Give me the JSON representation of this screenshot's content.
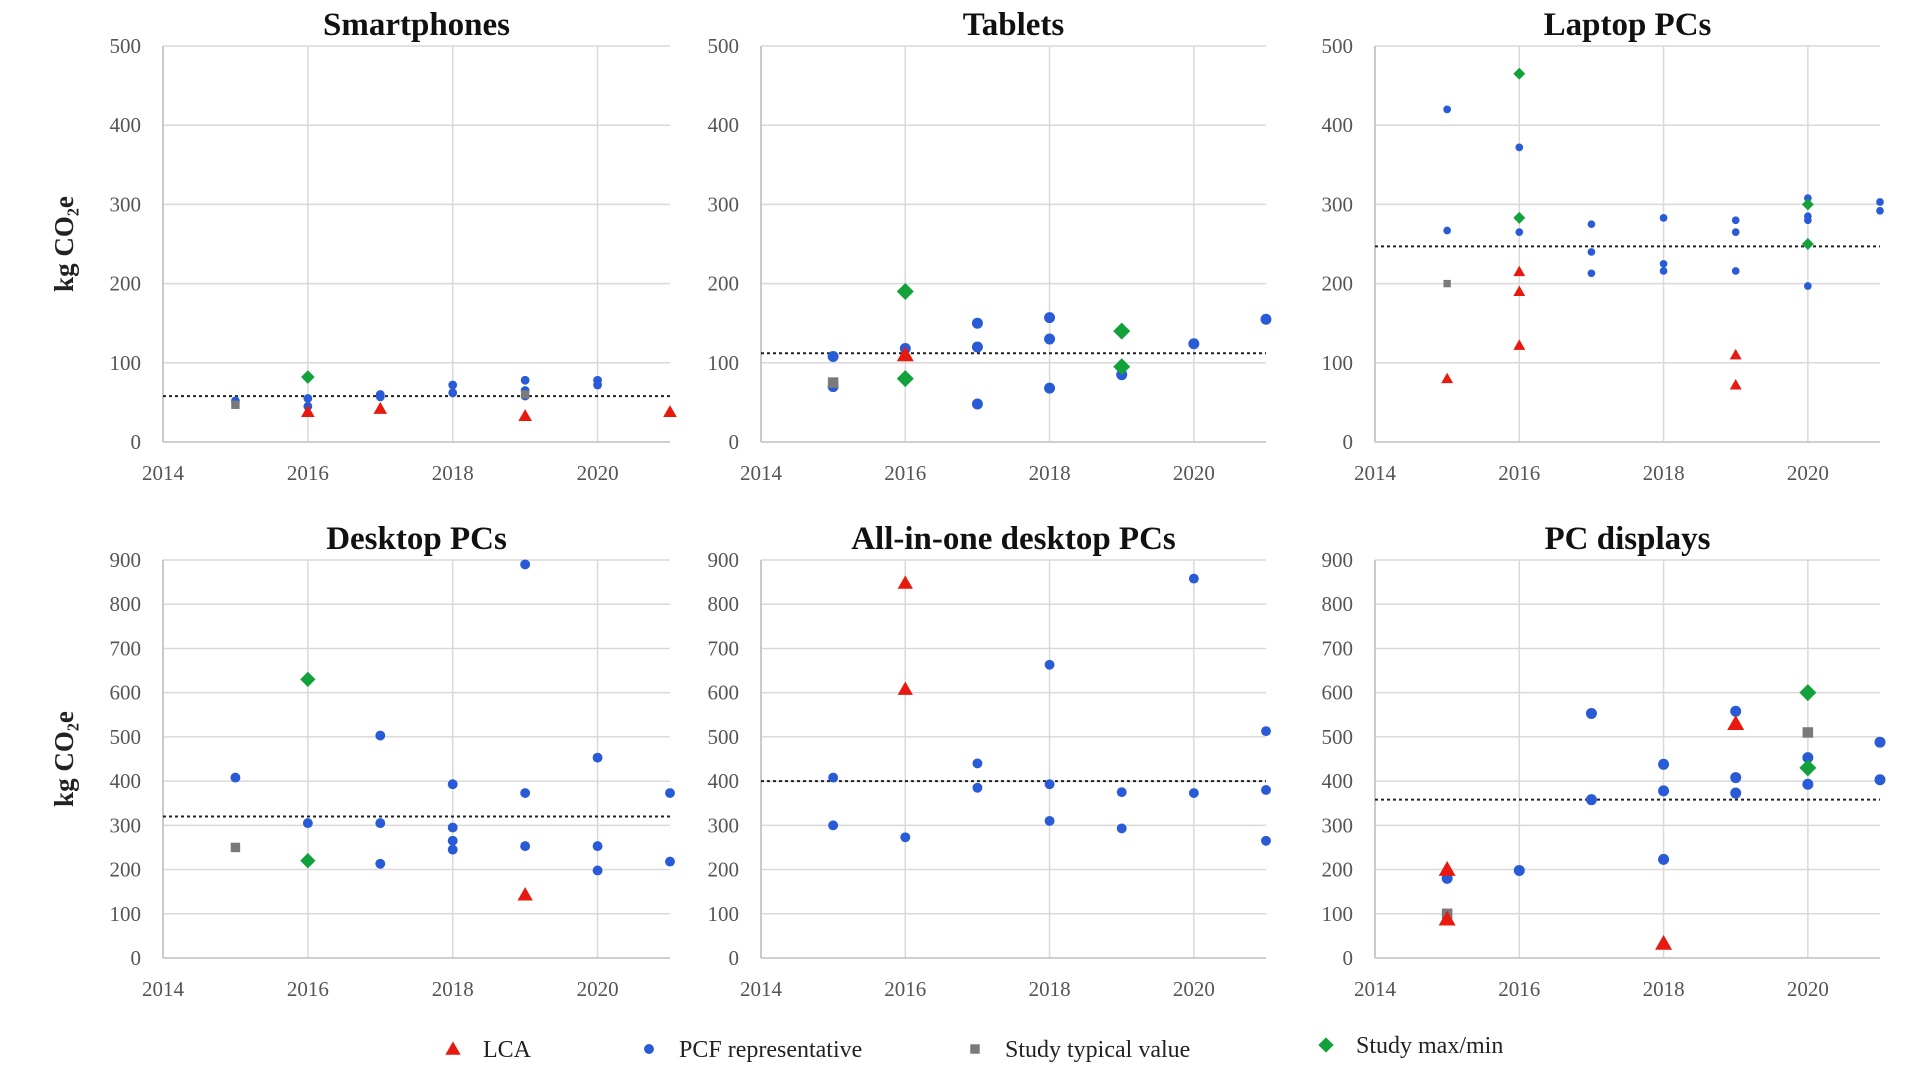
{
  "legend": [
    {
      "key": "lca",
      "label": "LCA",
      "marker": "triangle",
      "color": "#e8190f"
    },
    {
      "key": "pcf",
      "label": "PCF representative",
      "marker": "circle",
      "color": "#2a5bd7"
    },
    {
      "key": "typ",
      "label": "Study typical value",
      "marker": "square",
      "color": "#7a7a7a"
    },
    {
      "key": "mm",
      "label": "Study max/min",
      "marker": "diamond",
      "color": "#12a13a"
    }
  ],
  "chart_data": [
    {
      "type": "scatter",
      "title": "Smartphones",
      "ylabel": "kg CO₂e",
      "xlim": [
        2014,
        2021
      ],
      "xticks": [
        2014,
        2016,
        2018,
        2020
      ],
      "ylim": [
        0,
        500
      ],
      "yticks": [
        0,
        100,
        200,
        300,
        400,
        500
      ],
      "reference_line": 58,
      "series": {
        "lca": [
          [
            2016,
            38
          ],
          [
            2017,
            42
          ],
          [
            2019,
            33
          ],
          [
            2021,
            38
          ]
        ],
        "pcf": [
          [
            2015,
            52
          ],
          [
            2016,
            55
          ],
          [
            2016,
            45
          ],
          [
            2017,
            60
          ],
          [
            2017,
            57
          ],
          [
            2018,
            72
          ],
          [
            2018,
            62
          ],
          [
            2019,
            78
          ],
          [
            2019,
            65
          ],
          [
            2019,
            58
          ],
          [
            2020,
            78
          ],
          [
            2020,
            72
          ]
        ],
        "typ": [
          [
            2015,
            47
          ],
          [
            2019,
            60
          ]
        ],
        "mm": [
          [
            2016,
            82
          ]
        ]
      }
    },
    {
      "type": "scatter",
      "title": "Tablets",
      "ylabel": "",
      "xlim": [
        2014,
        2021
      ],
      "xticks": [
        2014,
        2016,
        2018,
        2020
      ],
      "ylim": [
        0,
        500
      ],
      "yticks": [
        0,
        100,
        200,
        300,
        400,
        500
      ],
      "reference_line": 112,
      "series": {
        "lca": [
          [
            2016,
            110
          ]
        ],
        "pcf": [
          [
            2015,
            108
          ],
          [
            2015,
            70
          ],
          [
            2016,
            118
          ],
          [
            2017,
            150
          ],
          [
            2017,
            120
          ],
          [
            2017,
            48
          ],
          [
            2018,
            157
          ],
          [
            2018,
            130
          ],
          [
            2018,
            68
          ],
          [
            2019,
            85
          ],
          [
            2020,
            124
          ],
          [
            2021,
            155
          ]
        ],
        "typ": [
          [
            2015,
            75
          ]
        ],
        "mm": [
          [
            2016,
            190
          ],
          [
            2016,
            80
          ],
          [
            2019,
            140
          ],
          [
            2019,
            95
          ]
        ]
      }
    },
    {
      "type": "scatter",
      "title": "Laptop PCs",
      "ylabel": "",
      "xlim": [
        2014,
        2021
      ],
      "xticks": [
        2014,
        2016,
        2018,
        2020
      ],
      "ylim": [
        0,
        500
      ],
      "yticks": [
        0,
        100,
        200,
        300,
        400,
        500
      ],
      "reference_line": 247,
      "series": {
        "lca": [
          [
            2015,
            80
          ],
          [
            2016,
            215
          ],
          [
            2016,
            190
          ],
          [
            2016,
            122
          ],
          [
            2019,
            110
          ],
          [
            2019,
            72
          ]
        ],
        "pcf": [
          [
            2015,
            420
          ],
          [
            2015,
            267
          ],
          [
            2016,
            372
          ],
          [
            2016,
            265
          ],
          [
            2017,
            275
          ],
          [
            2017,
            240
          ],
          [
            2017,
            213
          ],
          [
            2018,
            283
          ],
          [
            2018,
            225
          ],
          [
            2018,
            216
          ],
          [
            2019,
            280
          ],
          [
            2019,
            265
          ],
          [
            2019,
            216
          ],
          [
            2020,
            308
          ],
          [
            2020,
            285
          ],
          [
            2020,
            280
          ],
          [
            2020,
            197
          ],
          [
            2021,
            303
          ],
          [
            2021,
            292
          ]
        ],
        "typ": [
          [
            2015,
            200
          ]
        ],
        "mm": [
          [
            2016,
            465
          ],
          [
            2016,
            283
          ],
          [
            2020,
            300
          ],
          [
            2020,
            250
          ]
        ]
      }
    },
    {
      "type": "scatter",
      "title": "Desktop PCs",
      "ylabel": "kg CO₂e",
      "xlim": [
        2014,
        2021
      ],
      "xticks": [
        2014,
        2016,
        2018,
        2020
      ],
      "ylim": [
        0,
        900
      ],
      "yticks": [
        0,
        100,
        200,
        300,
        400,
        500,
        600,
        700,
        800,
        900
      ],
      "reference_line": 320,
      "series": {
        "lca": [
          [
            2019,
            143
          ]
        ],
        "pcf": [
          [
            2015,
            408
          ],
          [
            2016,
            305
          ],
          [
            2017,
            503
          ],
          [
            2017,
            305
          ],
          [
            2017,
            213
          ],
          [
            2018,
            393
          ],
          [
            2018,
            295
          ],
          [
            2018,
            265
          ],
          [
            2018,
            245
          ],
          [
            2019,
            890
          ],
          [
            2019,
            373
          ],
          [
            2019,
            253
          ],
          [
            2020,
            453
          ],
          [
            2020,
            253
          ],
          [
            2020,
            198
          ],
          [
            2021,
            373
          ],
          [
            2021,
            218
          ]
        ],
        "typ": [
          [
            2015,
            250
          ]
        ],
        "mm": [
          [
            2016,
            630
          ],
          [
            2016,
            220
          ]
        ]
      }
    },
    {
      "type": "scatter",
      "title": "All-in-one desktop PCs",
      "ylabel": "",
      "xlim": [
        2014,
        2021
      ],
      "xticks": [
        2014,
        2016,
        2018,
        2020
      ],
      "ylim": [
        0,
        900
      ],
      "yticks": [
        0,
        100,
        200,
        300,
        400,
        500,
        600,
        700,
        800,
        900
      ],
      "reference_line": 400,
      "series": {
        "lca": [
          [
            2016,
            848
          ],
          [
            2016,
            608
          ]
        ],
        "pcf": [
          [
            2015,
            408
          ],
          [
            2015,
            300
          ],
          [
            2016,
            273
          ],
          [
            2017,
            440
          ],
          [
            2017,
            385
          ],
          [
            2018,
            663
          ],
          [
            2018,
            393
          ],
          [
            2018,
            310
          ],
          [
            2019,
            375
          ],
          [
            2019,
            293
          ],
          [
            2020,
            858
          ],
          [
            2020,
            373
          ],
          [
            2021,
            513
          ],
          [
            2021,
            380
          ],
          [
            2021,
            265
          ]
        ],
        "typ": [],
        "mm": []
      }
    },
    {
      "type": "scatter",
      "title": "PC displays",
      "ylabel": "",
      "xlim": [
        2014,
        2021
      ],
      "xticks": [
        2014,
        2016,
        2018,
        2020
      ],
      "ylim": [
        0,
        900
      ],
      "yticks": [
        0,
        100,
        200,
        300,
        400,
        500,
        600,
        700,
        800,
        900
      ],
      "reference_line": 358,
      "series": {
        "lca": [
          [
            2015,
            200
          ],
          [
            2015,
            88
          ],
          [
            2018,
            33
          ],
          [
            2019,
            530
          ]
        ],
        "pcf": [
          [
            2015,
            180
          ],
          [
            2016,
            198
          ],
          [
            2017,
            553
          ],
          [
            2017,
            358
          ],
          [
            2018,
            438
          ],
          [
            2018,
            378
          ],
          [
            2018,
            223
          ],
          [
            2019,
            558
          ],
          [
            2019,
            408
          ],
          [
            2019,
            373
          ],
          [
            2020,
            453
          ],
          [
            2020,
            393
          ],
          [
            2021,
            488
          ],
          [
            2021,
            403
          ]
        ],
        "typ": [
          [
            2015,
            100
          ],
          [
            2020,
            510
          ]
        ],
        "mm": [
          [
            2020,
            600
          ],
          [
            2020,
            430
          ]
        ]
      }
    }
  ]
}
